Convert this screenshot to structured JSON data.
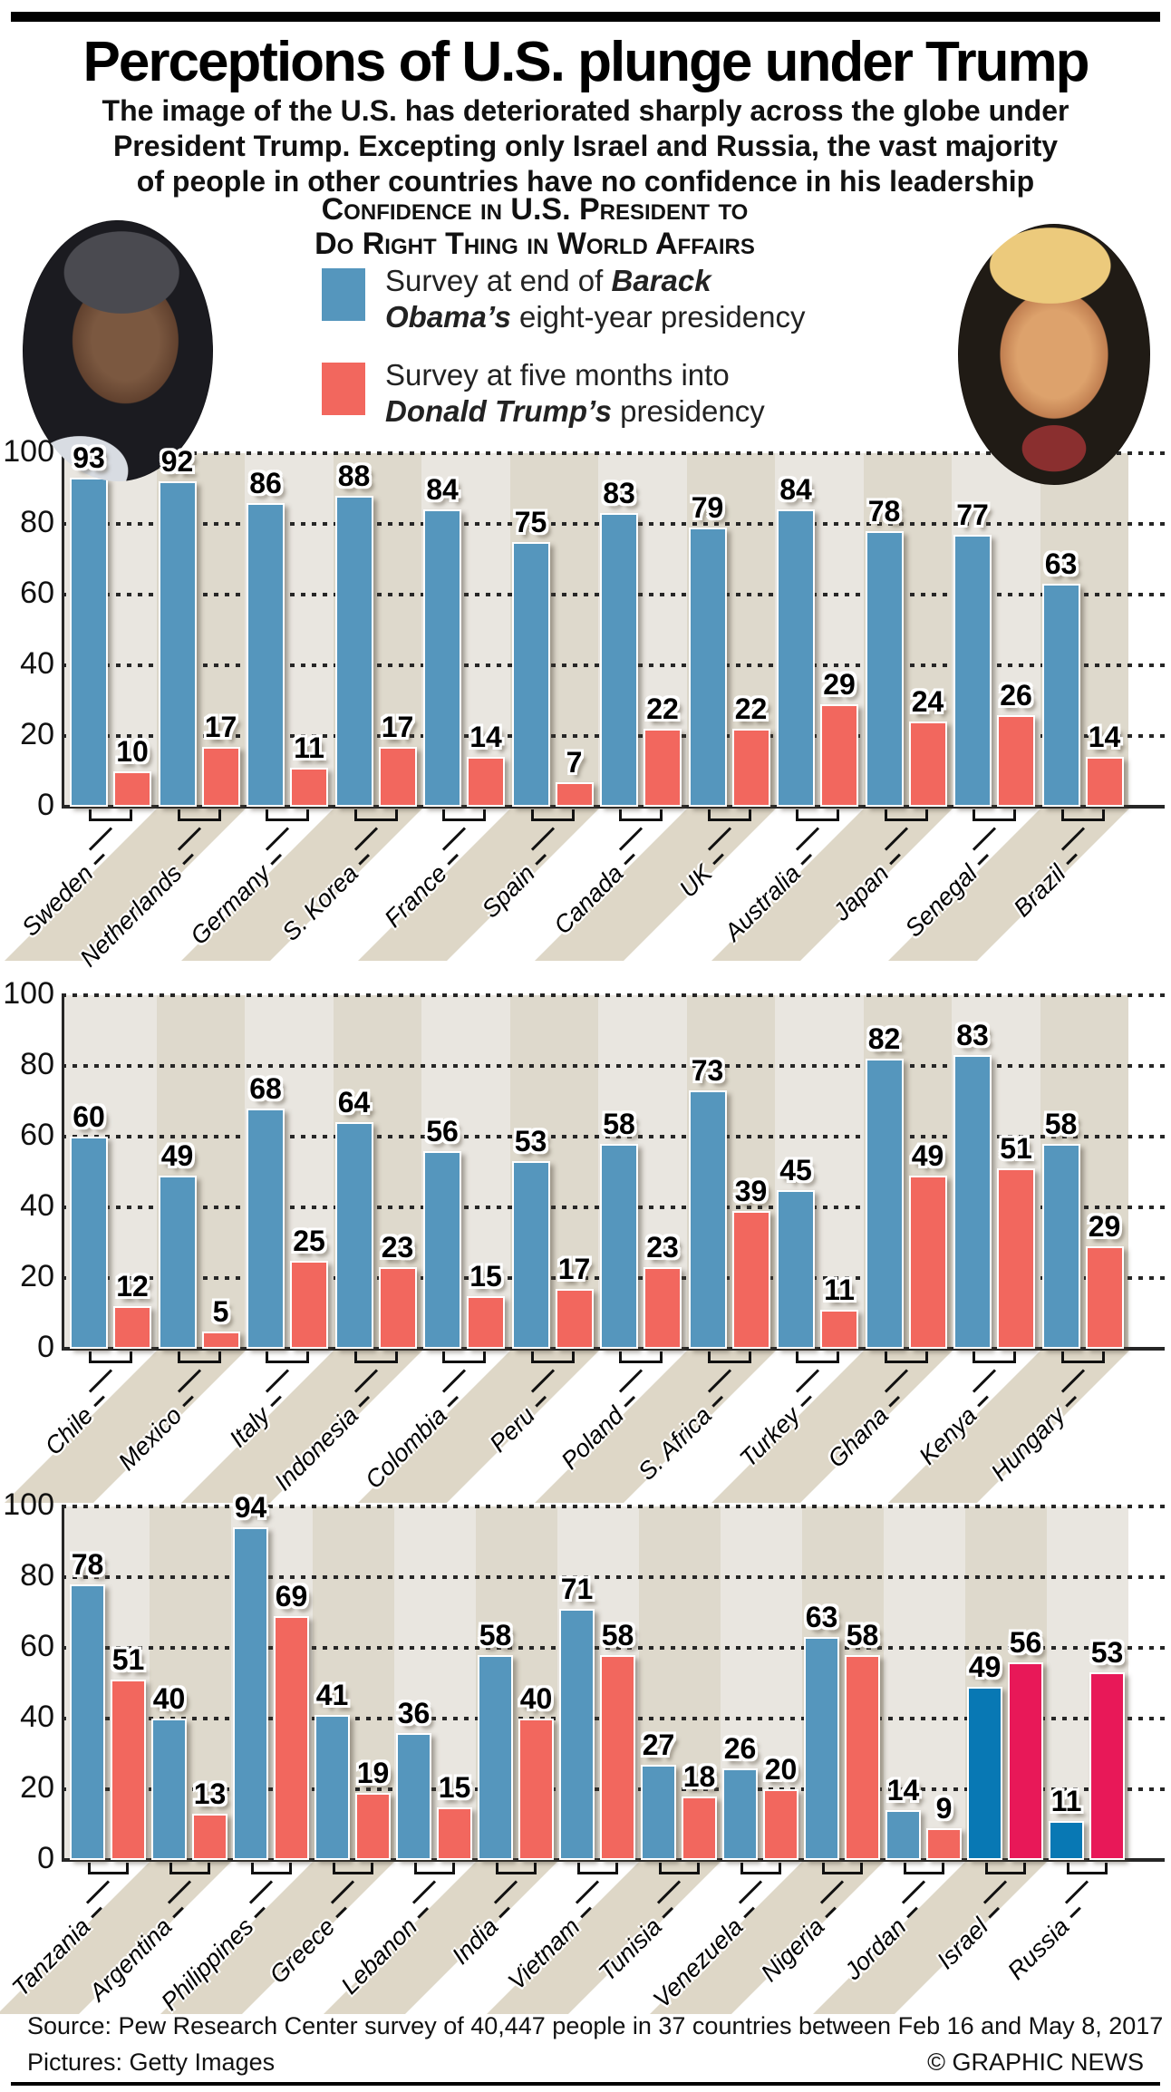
{
  "page": {
    "title": "Perceptions of U.S. plunge under Trump",
    "subtitle_lines": [
      "The image of the U.S. has deteriorated sharply across the globe under",
      "President Trump. Excepting only Israel and Russia, the vast majority",
      "of people in other countries have no confidence in his leadership"
    ],
    "photos": [
      {
        "name": "obama-photo",
        "subject": "Barack Obama"
      },
      {
        "name": "trump-photo",
        "subject": "Donald Trump"
      }
    ],
    "footer": {
      "source": "Source: Pew Research Center survey of 40,447 people in 37 countries between Feb 16 and May 8, 2017",
      "pictures": "Pictures: Getty Images",
      "credit": "© GRAPHIC NEWS"
    }
  },
  "legend": {
    "title_line1": "Confidence in U.S. President to",
    "title_line2": "Do Right Thing in World Affairs",
    "obama_item": {
      "line1_pre": "Survey at end of ",
      "line1_em": "Barack",
      "line2_em": "Obama’s",
      "line2_post": " eight-year presidency"
    },
    "trump_item": {
      "line1_pre": "Survey at five months into",
      "line2_em": "Donald Trump’s",
      "line2_post": " presidency"
    }
  },
  "colors": {
    "obama": "#5596bd",
    "trump": "#f2675e",
    "obama_highlight": "#0878b4",
    "trump_highlight": "#e81858",
    "plot_background": "#e9e6e0",
    "plot_stripe": "#ded9cc",
    "axis": "#262626"
  },
  "chart_data": [
    {
      "type": "bar",
      "ylim": [
        0,
        100
      ],
      "yticks": [
        0,
        20,
        40,
        60,
        80,
        100
      ],
      "grid": true,
      "legend_position": "top",
      "categories": [
        "Sweden",
        "Netherlands",
        "Germany",
        "S. Korea",
        "France",
        "Spain",
        "Canada",
        "UK",
        "Australia",
        "Japan",
        "Senegal",
        "Brazil"
      ],
      "series": [
        {
          "name": "Survey at end of Barack Obama’s eight-year presidency",
          "values": [
            93,
            92,
            86,
            88,
            84,
            75,
            83,
            79,
            84,
            78,
            77,
            63
          ]
        },
        {
          "name": "Survey at five months into Donald Trump’s presidency",
          "values": [
            10,
            17,
            11,
            17,
            14,
            7,
            22,
            22,
            29,
            24,
            26,
            14
          ]
        }
      ]
    },
    {
      "type": "bar",
      "ylim": [
        0,
        100
      ],
      "yticks": [
        0,
        20,
        40,
        60,
        80,
        100
      ],
      "grid": true,
      "categories": [
        "Chile",
        "Mexico",
        "Italy",
        "Indonesia",
        "Colombia",
        "Peru",
        "Poland",
        "S. Africa",
        "Turkey",
        "Ghana",
        "Kenya",
        "Hungary"
      ],
      "series": [
        {
          "name": "Survey at end of Barack Obama’s eight-year presidency",
          "values": [
            60,
            49,
            68,
            64,
            56,
            53,
            58,
            73,
            45,
            82,
            83,
            58
          ]
        },
        {
          "name": "Survey at five months into Donald Trump’s presidency",
          "values": [
            12,
            5,
            25,
            23,
            15,
            17,
            23,
            39,
            11,
            49,
            51,
            29
          ]
        }
      ]
    },
    {
      "type": "bar",
      "ylim": [
        0,
        100
      ],
      "yticks": [
        0,
        20,
        40,
        60,
        80,
        100
      ],
      "grid": true,
      "categories": [
        "Tanzania",
        "Argentina",
        "Philippines",
        "Greece",
        "Lebanon",
        "India",
        "Vietnam",
        "Tunisia",
        "Venezuela",
        "Nigeria",
        "Jordan",
        "Israel",
        "Russia"
      ],
      "highlight_categories": [
        "Israel",
        "Russia"
      ],
      "series": [
        {
          "name": "Survey at end of Barack Obama’s eight-year presidency",
          "values": [
            78,
            40,
            94,
            41,
            36,
            58,
            71,
            27,
            26,
            63,
            14,
            49,
            11
          ]
        },
        {
          "name": "Survey at five months into Donald Trump’s presidency",
          "values": [
            51,
            13,
            69,
            19,
            15,
            40,
            58,
            18,
            20,
            58,
            9,
            56,
            53
          ]
        }
      ]
    }
  ]
}
